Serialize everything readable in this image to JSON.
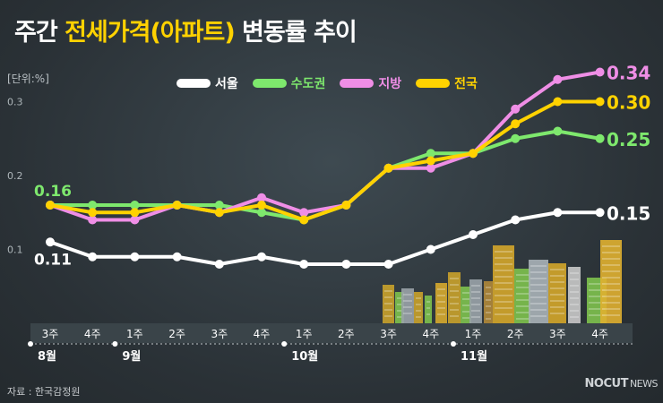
{
  "title": {
    "prefix": "주간 ",
    "highlight": "전세가격(아파트)",
    "suffix": " 변동률 추이"
  },
  "unit_label": "[단위:%]",
  "source": "자료 : 한국감정원",
  "brand": {
    "main": "NOCUT",
    "sub": "NEWS"
  },
  "colors": {
    "background": "#2c3438",
    "seoul": "#ffffff",
    "capital": "#7ee86d",
    "regional": "#ef8ee6",
    "national": "#ffd200"
  },
  "chart_data": {
    "type": "line",
    "x": [
      "3주",
      "4주",
      "1주",
      "2주",
      "3주",
      "4주",
      "1주",
      "2주",
      "3주",
      "4주",
      "1주",
      "2주",
      "3주",
      "4주"
    ],
    "month_labels": [
      {
        "label": "8월",
        "start_index": 0
      },
      {
        "label": "9월",
        "start_index": 2
      },
      {
        "label": "10월",
        "start_index": 6
      },
      {
        "label": "11월",
        "start_index": 10
      }
    ],
    "y_ticks": [
      "0.1",
      "0.2",
      "0.3"
    ],
    "y_tick_values": [
      0.1,
      0.2,
      0.3
    ],
    "ylim": [
      0.0,
      0.34
    ],
    "grid": false,
    "legend_position": "top",
    "series": [
      {
        "name": "서울",
        "color": "#ffffff",
        "values": [
          0.11,
          0.09,
          0.09,
          0.09,
          0.08,
          0.09,
          0.08,
          0.08,
          0.08,
          0.1,
          0.12,
          0.14,
          0.15,
          0.15
        ],
        "end_label": "0.15",
        "start_label": "0.11"
      },
      {
        "name": "수도권",
        "color": "#7ee86d",
        "values": [
          0.16,
          0.16,
          0.16,
          0.16,
          0.16,
          0.15,
          0.14,
          0.16,
          0.21,
          0.23,
          0.23,
          0.25,
          0.26,
          0.25
        ],
        "end_label": "0.25",
        "start_label": "0.16"
      },
      {
        "name": "지방",
        "color": "#ef8ee6",
        "values": [
          0.16,
          0.14,
          0.14,
          0.16,
          0.15,
          0.17,
          0.15,
          0.16,
          0.21,
          0.21,
          0.23,
          0.29,
          0.33,
          0.34
        ],
        "end_label": "0.34"
      },
      {
        "name": "전국",
        "color": "#ffd200",
        "values": [
          0.16,
          0.15,
          0.15,
          0.16,
          0.15,
          0.16,
          0.14,
          0.16,
          0.21,
          0.22,
          0.23,
          0.27,
          0.3,
          0.3
        ],
        "end_label": "0.30"
      }
    ]
  }
}
